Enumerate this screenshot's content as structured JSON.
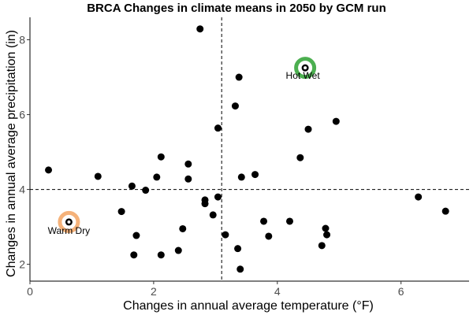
{
  "chart_data": {
    "type": "scatter",
    "title": "BRCA Changes in climate means in 2050 by GCM run",
    "xlabel": "Changes in annual average temperature (°F)",
    "ylabel": "Changes in annual average precipitation (in)",
    "xlim": [
      0,
      7.1
    ],
    "ylim": [
      1.55,
      8.6
    ],
    "xticks": [
      0,
      2,
      4,
      6
    ],
    "yticks": [
      2,
      4,
      6,
      8
    ],
    "grid": false,
    "reference_lines": {
      "x": 3.1,
      "y": 4.0
    },
    "points": [
      {
        "x": 0.3,
        "y": 4.52
      },
      {
        "x": 1.1,
        "y": 4.35
      },
      {
        "x": 1.48,
        "y": 3.41
      },
      {
        "x": 1.65,
        "y": 4.09
      },
      {
        "x": 1.72,
        "y": 2.77
      },
      {
        "x": 1.68,
        "y": 2.25
      },
      {
        "x": 1.87,
        "y": 3.98
      },
      {
        "x": 2.05,
        "y": 4.33
      },
      {
        "x": 2.12,
        "y": 4.87
      },
      {
        "x": 2.12,
        "y": 2.25
      },
      {
        "x": 2.4,
        "y": 2.37
      },
      {
        "x": 2.47,
        "y": 2.95
      },
      {
        "x": 2.56,
        "y": 4.68
      },
      {
        "x": 2.56,
        "y": 4.28
      },
      {
        "x": 2.75,
        "y": 8.29
      },
      {
        "x": 2.83,
        "y": 3.72
      },
      {
        "x": 2.83,
        "y": 3.62
      },
      {
        "x": 2.96,
        "y": 3.32
      },
      {
        "x": 3.04,
        "y": 3.8
      },
      {
        "x": 3.04,
        "y": 5.64
      },
      {
        "x": 3.16,
        "y": 2.79
      },
      {
        "x": 3.32,
        "y": 6.23
      },
      {
        "x": 3.36,
        "y": 2.42
      },
      {
        "x": 3.38,
        "y": 7.0
      },
      {
        "x": 3.4,
        "y": 1.87
      },
      {
        "x": 3.42,
        "y": 4.33
      },
      {
        "x": 3.64,
        "y": 4.4
      },
      {
        "x": 3.78,
        "y": 3.15
      },
      {
        "x": 3.86,
        "y": 2.75
      },
      {
        "x": 4.2,
        "y": 3.15
      },
      {
        "x": 4.37,
        "y": 4.85
      },
      {
        "x": 4.5,
        "y": 5.61
      },
      {
        "x": 4.72,
        "y": 2.5
      },
      {
        "x": 4.78,
        "y": 2.96
      },
      {
        "x": 4.8,
        "y": 2.79
      },
      {
        "x": 4.95,
        "y": 5.82
      },
      {
        "x": 6.28,
        "y": 3.8
      },
      {
        "x": 6.72,
        "y": 3.42
      }
    ],
    "highlighted": [
      {
        "label": "Hot Wet",
        "x": 4.45,
        "y": 7.25,
        "color": "#4caf50",
        "label_position": "below-left"
      },
      {
        "label": "Warm Dry",
        "x": 0.63,
        "y": 3.13,
        "color": "#f5b27a",
        "label_position": "below"
      }
    ],
    "point_color": "#000000"
  }
}
